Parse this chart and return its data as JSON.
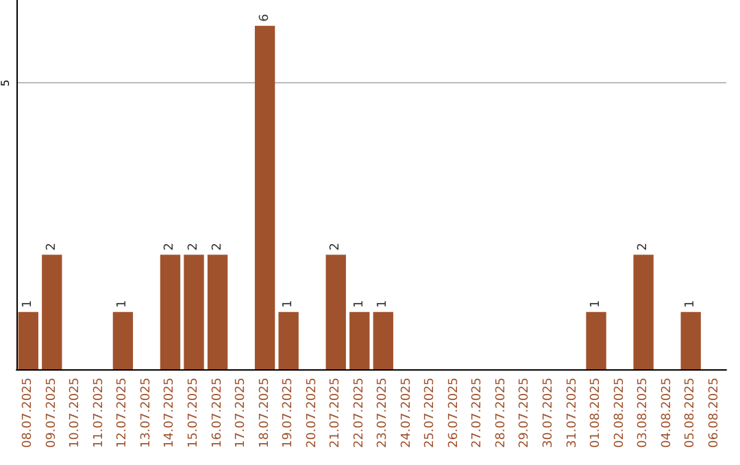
{
  "chart_data": {
    "type": "bar",
    "categories": [
      "08.07.2025",
      "09.07.2025",
      "10.07.2025",
      "11.07.2025",
      "12.07.2025",
      "13.07.2025",
      "14.07.2025",
      "15.07.2025",
      "16.07.2025",
      "17.07.2025",
      "18.07.2025",
      "19.07.2025",
      "20.07.2025",
      "21.07.2025",
      "22.07.2025",
      "23.07.2025",
      "24.07.2025",
      "25.07.2025",
      "26.07.2025",
      "27.07.2025",
      "28.07.2025",
      "29.07.2025",
      "30.07.2025",
      "31.07.2025",
      "01.08.2025",
      "02.08.2025",
      "03.08.2025",
      "04.08.2025",
      "05.08.2025",
      "06.08.2025"
    ],
    "values": [
      1,
      2,
      0,
      0,
      1,
      0,
      2,
      2,
      2,
      0,
      6,
      1,
      0,
      2,
      1,
      1,
      0,
      0,
      0,
      0,
      0,
      0,
      0,
      0,
      1,
      0,
      2,
      0,
      1,
      0
    ],
    "value_labels": [
      "1",
      "2",
      null,
      null,
      "1",
      null,
      "2",
      "2",
      "2",
      null,
      "6",
      "1",
      null,
      "2",
      "1",
      "1",
      null,
      null,
      null,
      null,
      null,
      null,
      null,
      null,
      "1",
      null,
      "2",
      null,
      "1",
      null
    ],
    "color": "#a0522d",
    "ylim": [
      0,
      6.45
    ],
    "yticks": [
      5
    ],
    "grid": "y"
  }
}
